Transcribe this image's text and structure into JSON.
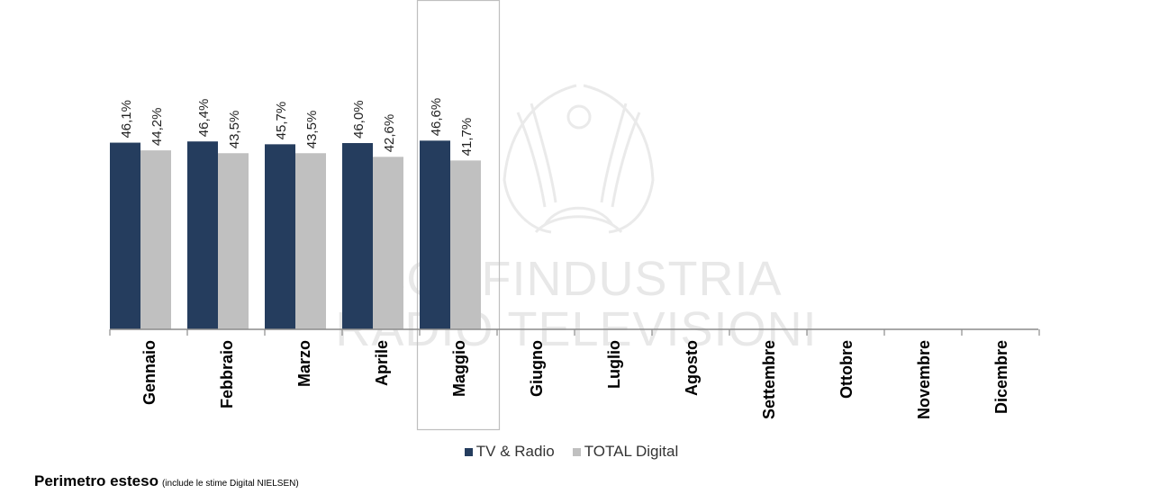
{
  "chart_data": {
    "type": "bar",
    "categories": [
      "Gennaio",
      "Febbraio",
      "Marzo",
      "Aprile",
      "Maggio",
      "Giugno",
      "Luglio",
      "Agosto",
      "Settembre",
      "Ottobre",
      "Novembre",
      "Dicembre"
    ],
    "series": [
      {
        "name": "TV & Radio",
        "color": "#253d5e",
        "values": [
          46.1,
          46.4,
          45.7,
          46.0,
          46.6,
          null,
          null,
          null,
          null,
          null,
          null,
          null
        ],
        "labels": [
          "46,1%",
          "46,4%",
          "45,7%",
          "46,0%",
          "46,6%"
        ]
      },
      {
        "name": "TOTAL Digital",
        "color": "#c0c0c0",
        "values": [
          44.2,
          43.5,
          43.5,
          42.6,
          41.7,
          null,
          null,
          null,
          null,
          null,
          null,
          null
        ],
        "labels": [
          "44,2%",
          "43,5%",
          "43,5%",
          "42,6%",
          "41,7%"
        ]
      }
    ],
    "highlighted_category": "Maggio",
    "legend_position": "bottom",
    "grid": false
  },
  "watermark": {
    "line1": "CONFINDUSTRIA",
    "line2": "RADIO TELEVISIONI"
  },
  "footnote": {
    "main": "Perimetro esteso",
    "sub": "(include le stime Digital NIELSEN)"
  }
}
